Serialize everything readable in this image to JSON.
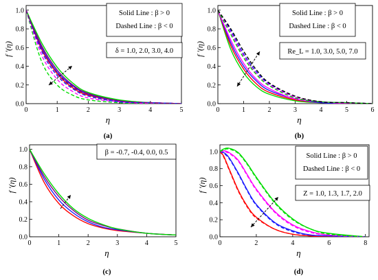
{
  "colors": {
    "red": "#ff0000",
    "blue": "#1a1aff",
    "purple": "#800080",
    "magenta": "#ff00ff",
    "green": "#00dd00",
    "black": "#000000"
  },
  "panels": [
    {
      "key": "a",
      "caption": "(a)",
      "xlabel": "η",
      "ylabel": "f ′(η)",
      "xlim": [
        0,
        5
      ],
      "ylim": [
        0,
        1.05
      ],
      "xticks": [
        "0",
        "1",
        "2",
        "3",
        "4",
        "5"
      ],
      "yticks": [
        "0.0",
        "0.2",
        "0.4",
        "0.6",
        "0.8",
        "1.0"
      ],
      "legend": [
        "Solid Line : β > 0",
        "Dashed Line : β < 0"
      ],
      "annotation": "δ = 1.0, 2.0, 3.0, 4.0",
      "arrow": "double"
    },
    {
      "key": "b",
      "caption": "(b)",
      "xlabel": "η",
      "ylabel": "f ′(η)",
      "xlim": [
        0,
        6
      ],
      "ylim": [
        0,
        1.05
      ],
      "xticks": [
        "0",
        "1",
        "2",
        "3",
        "4",
        "5",
        "6"
      ],
      "yticks": [
        "0.0",
        "0.2",
        "0.4",
        "0.6",
        "0.8",
        "1.0"
      ],
      "legend": [
        "Solid Line : β > 0",
        "Dashed Line : β < 0"
      ],
      "annotation": "Re_L = 1.0, 3.0, 5.0, 7.0",
      "arrow": "double"
    },
    {
      "key": "c",
      "caption": "(c)",
      "xlabel": "η",
      "ylabel": "f ′(η)",
      "xlim": [
        0,
        5
      ],
      "ylim": [
        0,
        1.05
      ],
      "xticks": [
        "0",
        "1",
        "2",
        "3",
        "4",
        "5"
      ],
      "yticks": [
        "0.0",
        "0.2",
        "0.4",
        "0.6",
        "0.8",
        "1.0"
      ],
      "legend": [],
      "annotation": "β = -0.7, -0.4, 0.0, 0.5",
      "arrow": "single"
    },
    {
      "key": "d",
      "caption": "(d)",
      "xlabel": "η",
      "ylabel": "f ′(η)",
      "xlim": [
        0,
        8.2
      ],
      "ylim": [
        0,
        1.08
      ],
      "xticks": [
        "0",
        "2",
        "4",
        "6",
        "8"
      ],
      "yticks": [
        "0.0",
        "0.2",
        "0.4",
        "0.6",
        "0.8",
        "1.0"
      ],
      "legend": [
        "Solid Line : β > 0",
        "Dashed Line : β < 0"
      ],
      "annotation": "Z = 1.0, 1.3, 1.7, 2.0",
      "arrow": "double"
    }
  ],
  "chart_data": [
    {
      "type": "line",
      "panel": "a",
      "xlim": [
        0,
        5
      ],
      "ylim": [
        0,
        1.05
      ],
      "series": [
        {
          "color": "red",
          "style": "solid",
          "x": [
            0,
            0.5,
            1,
            1.5,
            2,
            3,
            4,
            5
          ],
          "y": [
            1.0,
            0.58,
            0.32,
            0.17,
            0.09,
            0.03,
            0.01,
            0.0
          ]
        },
        {
          "color": "blue",
          "style": "solid",
          "x": [
            0,
            0.5,
            1,
            1.5,
            2,
            3,
            4,
            5
          ],
          "y": [
            1.0,
            0.6,
            0.34,
            0.19,
            0.1,
            0.03,
            0.01,
            0.0
          ]
        },
        {
          "color": "purple",
          "style": "solid",
          "x": [
            0,
            0.5,
            1,
            1.5,
            2,
            3,
            4,
            5
          ],
          "y": [
            1.0,
            0.62,
            0.36,
            0.2,
            0.11,
            0.03,
            0.01,
            0.0
          ]
        },
        {
          "color": "green",
          "style": "solid",
          "x": [
            0,
            0.5,
            1,
            1.5,
            2,
            3,
            4,
            5
          ],
          "y": [
            1.0,
            0.65,
            0.39,
            0.22,
            0.12,
            0.04,
            0.01,
            0.0
          ]
        },
        {
          "color": "green",
          "style": "dashed",
          "x": [
            0,
            0.5,
            1,
            1.5,
            2,
            3,
            4,
            5
          ],
          "y": [
            1.0,
            0.45,
            0.2,
            0.09,
            0.04,
            0.01,
            0.0,
            0.0
          ]
        },
        {
          "color": "magenta",
          "style": "dashed",
          "x": [
            0,
            0.5,
            1,
            1.5,
            2,
            3,
            4,
            5
          ],
          "y": [
            1.0,
            0.52,
            0.26,
            0.13,
            0.06,
            0.02,
            0.0,
            0.0
          ]
        },
        {
          "color": "blue",
          "style": "dashed",
          "x": [
            0,
            0.5,
            1,
            1.5,
            2,
            3,
            4,
            5
          ],
          "y": [
            1.0,
            0.56,
            0.3,
            0.16,
            0.08,
            0.02,
            0.01,
            0.0
          ]
        },
        {
          "color": "purple",
          "style": "dashed",
          "x": [
            0,
            0.5,
            1,
            1.5,
            2,
            3,
            4,
            5
          ],
          "y": [
            1.0,
            0.59,
            0.33,
            0.18,
            0.1,
            0.03,
            0.01,
            0.0
          ]
        }
      ]
    },
    {
      "type": "line",
      "panel": "b",
      "xlim": [
        0,
        6
      ],
      "ylim": [
        0,
        1.05
      ],
      "series": [
        {
          "color": "green",
          "style": "solid",
          "x": [
            0,
            0.5,
            1,
            1.5,
            2,
            3,
            4,
            5,
            6
          ],
          "y": [
            1.0,
            0.58,
            0.33,
            0.18,
            0.1,
            0.03,
            0.01,
            0.0,
            0.0
          ]
        },
        {
          "color": "red",
          "style": "solid",
          "x": [
            0,
            0.5,
            1,
            1.5,
            2,
            3,
            4,
            5,
            6
          ],
          "y": [
            1.0,
            0.62,
            0.37,
            0.21,
            0.12,
            0.04,
            0.01,
            0.0,
            0.0
          ]
        },
        {
          "color": "blue",
          "style": "solid",
          "x": [
            0,
            0.5,
            1,
            1.5,
            2,
            3,
            4,
            5,
            6
          ],
          "y": [
            1.0,
            0.65,
            0.4,
            0.24,
            0.14,
            0.05,
            0.01,
            0.0,
            0.0
          ]
        },
        {
          "color": "magenta",
          "style": "solid",
          "x": [
            0,
            0.5,
            1,
            1.5,
            2,
            3,
            4,
            5,
            6
          ],
          "y": [
            1.0,
            0.68,
            0.43,
            0.26,
            0.16,
            0.05,
            0.02,
            0.0,
            0.0
          ]
        },
        {
          "color": "blue",
          "style": "dashed",
          "x": [
            0,
            0.5,
            1,
            1.5,
            2,
            3,
            4,
            5,
            6
          ],
          "y": [
            1.0,
            0.78,
            0.53,
            0.34,
            0.21,
            0.07,
            0.02,
            0.01,
            0.0
          ]
        },
        {
          "color": "magenta",
          "style": "dashed",
          "x": [
            0,
            0.5,
            1,
            1.5,
            2,
            3,
            4,
            5,
            6
          ],
          "y": [
            1.0,
            0.76,
            0.51,
            0.32,
            0.2,
            0.07,
            0.02,
            0.01,
            0.0
          ]
        },
        {
          "color": "green",
          "style": "dashed",
          "x": [
            0,
            0.5,
            1,
            1.5,
            2,
            3,
            4,
            5,
            6
          ],
          "y": [
            1.0,
            0.74,
            0.49,
            0.31,
            0.19,
            0.06,
            0.02,
            0.01,
            0.0
          ]
        },
        {
          "color": "black",
          "style": "dashed",
          "x": [
            0,
            0.5,
            1,
            1.5,
            2,
            3,
            4,
            5,
            6
          ],
          "y": [
            1.0,
            0.8,
            0.56,
            0.36,
            0.22,
            0.08,
            0.02,
            0.01,
            0.0
          ]
        }
      ]
    },
    {
      "type": "line",
      "panel": "c",
      "xlim": [
        0,
        5
      ],
      "ylim": [
        0,
        1.05
      ],
      "series": [
        {
          "color": "red",
          "style": "solid",
          "x": [
            0,
            0.5,
            1,
            1.5,
            2,
            2.5,
            3,
            4,
            5
          ],
          "y": [
            1.0,
            0.62,
            0.38,
            0.24,
            0.15,
            0.1,
            0.07,
            0.04,
            0.02
          ]
        },
        {
          "color": "blue",
          "style": "solid",
          "x": [
            0,
            0.5,
            1,
            1.5,
            2,
            2.5,
            3,
            4,
            5
          ],
          "y": [
            1.0,
            0.66,
            0.42,
            0.27,
            0.17,
            0.11,
            0.08,
            0.04,
            0.02
          ]
        },
        {
          "color": "purple",
          "style": "solid",
          "x": [
            0,
            0.5,
            1,
            1.5,
            2,
            2.5,
            3,
            4,
            5
          ],
          "y": [
            1.0,
            0.69,
            0.46,
            0.3,
            0.19,
            0.13,
            0.09,
            0.04,
            0.02
          ]
        },
        {
          "color": "green",
          "style": "solid",
          "x": [
            0,
            0.5,
            1,
            1.5,
            2,
            2.5,
            3,
            4,
            5
          ],
          "y": [
            1.0,
            0.72,
            0.49,
            0.32,
            0.21,
            0.14,
            0.09,
            0.04,
            0.02
          ]
        }
      ]
    },
    {
      "type": "line",
      "panel": "d",
      "xlim": [
        0,
        8.2
      ],
      "ylim": [
        0,
        1.08
      ],
      "series": [
        {
          "color": "red",
          "style": "solid",
          "x": [
            0,
            0.2,
            0.5,
            1,
            1.5,
            2,
            3,
            4,
            5,
            6,
            8
          ],
          "y": [
            1.0,
            0.95,
            0.8,
            0.55,
            0.36,
            0.23,
            0.09,
            0.03,
            0.01,
            0.0,
            0.0
          ]
        },
        {
          "color": "blue",
          "style": "solid",
          "x": [
            0,
            0.2,
            0.5,
            1,
            1.5,
            2,
            3,
            4,
            5,
            6,
            8
          ],
          "y": [
            1.0,
            0.99,
            0.93,
            0.75,
            0.55,
            0.38,
            0.17,
            0.07,
            0.02,
            0.01,
            0.0
          ]
        },
        {
          "color": "magenta",
          "style": "solid",
          "x": [
            0,
            0.2,
            0.5,
            1,
            1.5,
            2,
            3,
            4,
            5,
            6,
            8
          ],
          "y": [
            1.0,
            1.01,
            0.99,
            0.9,
            0.73,
            0.56,
            0.3,
            0.14,
            0.06,
            0.02,
            0.0
          ]
        },
        {
          "color": "green",
          "style": "solid",
          "x": [
            0,
            0.2,
            0.5,
            1,
            1.5,
            2,
            3,
            4,
            5,
            6,
            8
          ],
          "y": [
            1.0,
            1.03,
            1.04,
            0.99,
            0.86,
            0.7,
            0.41,
            0.21,
            0.09,
            0.04,
            0.0
          ]
        },
        {
          "color": "red",
          "style": "dashed",
          "x": [
            0,
            0.2,
            0.5,
            1,
            1.5,
            2,
            3,
            4,
            5,
            6,
            8
          ],
          "y": [
            1.0,
            0.94,
            0.79,
            0.54,
            0.35,
            0.22,
            0.09,
            0.03,
            0.01,
            0.0,
            0.0
          ]
        },
        {
          "color": "blue",
          "style": "dashed",
          "x": [
            0,
            0.2,
            0.5,
            1,
            1.5,
            2,
            3,
            4,
            5,
            6,
            8
          ],
          "y": [
            1.0,
            0.98,
            0.92,
            0.74,
            0.54,
            0.37,
            0.16,
            0.06,
            0.02,
            0.01,
            0.0
          ]
        },
        {
          "color": "magenta",
          "style": "dashed",
          "x": [
            0,
            0.2,
            0.5,
            1,
            1.5,
            2,
            3,
            4,
            5,
            6,
            8
          ],
          "y": [
            1.0,
            1.0,
            0.98,
            0.89,
            0.72,
            0.55,
            0.29,
            0.13,
            0.05,
            0.02,
            0.0
          ]
        },
        {
          "color": "green",
          "style": "dashed",
          "x": [
            0,
            0.2,
            0.5,
            1,
            1.5,
            2,
            3,
            4,
            5,
            6,
            8
          ],
          "y": [
            1.0,
            1.02,
            1.03,
            0.98,
            0.85,
            0.69,
            0.4,
            0.2,
            0.09,
            0.03,
            0.0
          ]
        }
      ]
    }
  ]
}
